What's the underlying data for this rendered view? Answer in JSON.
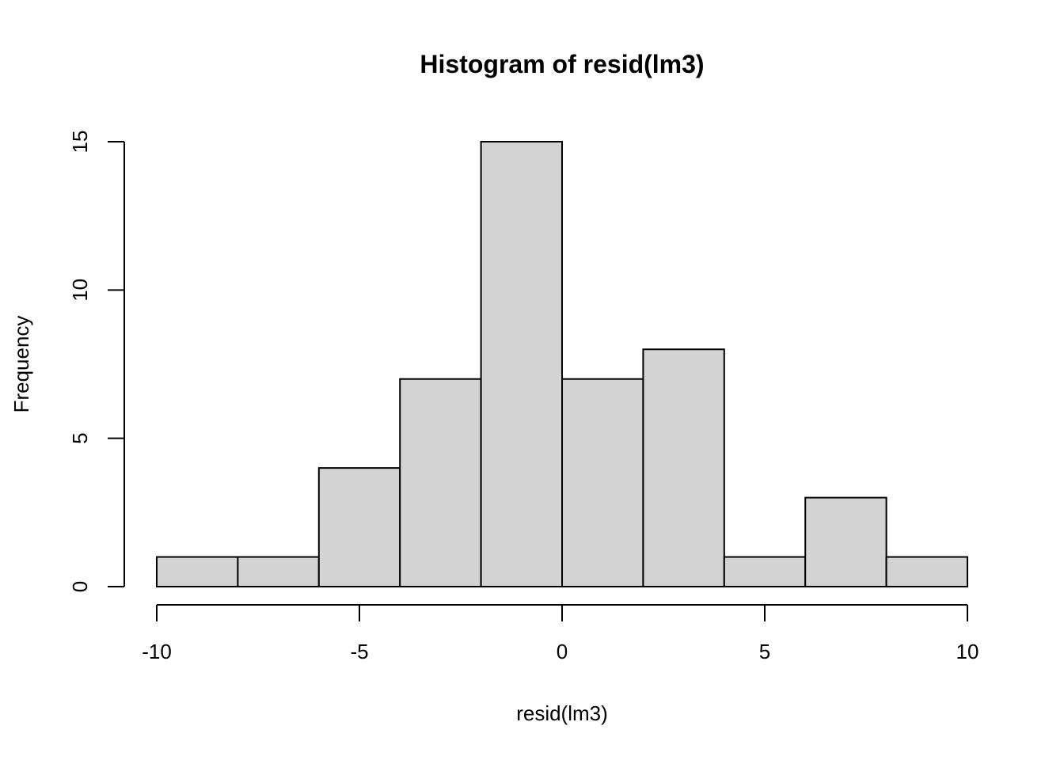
{
  "chart_data": {
    "type": "bar",
    "title": "Histogram of resid(lm3)",
    "xlabel": "resid(lm3)",
    "ylabel": "Frequency",
    "bins": [
      {
        "start": -10,
        "end": -8,
        "count": 1
      },
      {
        "start": -8,
        "end": -6,
        "count": 1
      },
      {
        "start": -6,
        "end": -4,
        "count": 4
      },
      {
        "start": -4,
        "end": -2,
        "count": 7
      },
      {
        "start": -2,
        "end": 0,
        "count": 15
      },
      {
        "start": 0,
        "end": 2,
        "count": 7
      },
      {
        "start": 2,
        "end": 4,
        "count": 8
      },
      {
        "start": 4,
        "end": 6,
        "count": 1
      },
      {
        "start": 6,
        "end": 8,
        "count": 3
      },
      {
        "start": 8,
        "end": 10,
        "count": 1
      }
    ],
    "xlim": [
      -10,
      10
    ],
    "ylim": [
      0,
      15
    ],
    "x_ticks": [
      -10,
      -5,
      0,
      5,
      10
    ],
    "x_tick_labels": [
      "-10",
      "-5",
      "0",
      "5",
      "10"
    ],
    "y_ticks": [
      0,
      5,
      10,
      15
    ],
    "y_tick_labels": [
      "0",
      "5",
      "10",
      "15"
    ],
    "bar_fill": "#d3d3d3",
    "bar_stroke": "#000000",
    "grid": false,
    "legend": "none"
  }
}
